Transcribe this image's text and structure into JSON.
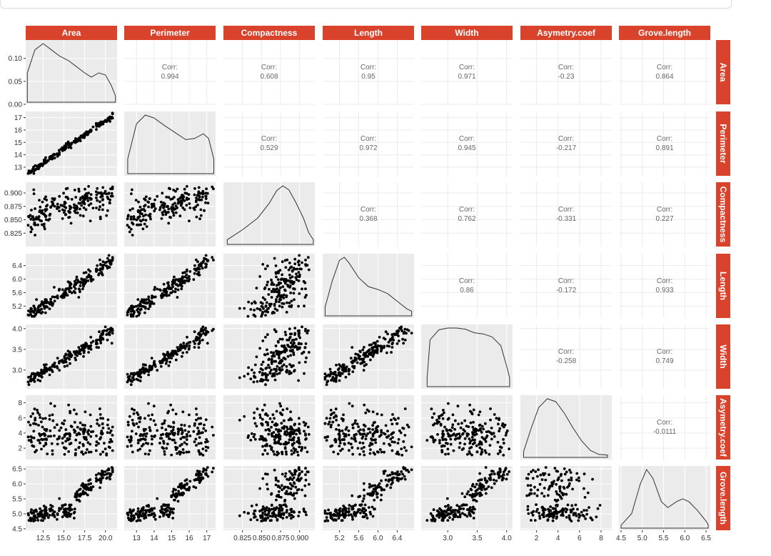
{
  "chart_data": {
    "type": "scatter-matrix",
    "variables": [
      "Area",
      "Perimeter",
      "Compactness",
      "Length",
      "Width",
      "Asymetry.coef",
      "Grove.length"
    ],
    "corr_label": "Corr:",
    "correlations": [
      {
        "row": 0,
        "col": 1,
        "value": "0.994"
      },
      {
        "row": 0,
        "col": 2,
        "value": "0.608"
      },
      {
        "row": 0,
        "col": 3,
        "value": "0.95"
      },
      {
        "row": 0,
        "col": 4,
        "value": "0.971"
      },
      {
        "row": 0,
        "col": 5,
        "value": "-0.23"
      },
      {
        "row": 0,
        "col": 6,
        "value": "0.864"
      },
      {
        "row": 1,
        "col": 2,
        "value": "0.529"
      },
      {
        "row": 1,
        "col": 3,
        "value": "0.972"
      },
      {
        "row": 1,
        "col": 4,
        "value": "0.945"
      },
      {
        "row": 1,
        "col": 5,
        "value": "-0.217"
      },
      {
        "row": 1,
        "col": 6,
        "value": "0.891"
      },
      {
        "row": 2,
        "col": 3,
        "value": "0.368"
      },
      {
        "row": 2,
        "col": 4,
        "value": "0.762"
      },
      {
        "row": 2,
        "col": 5,
        "value": "-0.331"
      },
      {
        "row": 2,
        "col": 6,
        "value": "0.227"
      },
      {
        "row": 3,
        "col": 4,
        "value": "0.86"
      },
      {
        "row": 3,
        "col": 5,
        "value": "-0.172"
      },
      {
        "row": 3,
        "col": 6,
        "value": "0.933"
      },
      {
        "row": 4,
        "col": 5,
        "value": "-0.258"
      },
      {
        "row": 4,
        "col": 6,
        "value": "0.749"
      },
      {
        "row": 5,
        "col": 6,
        "value": "-0.0111"
      }
    ],
    "ranges": [
      [
        10.4,
        21.4
      ],
      [
        12.3,
        17.5
      ],
      [
        0.8,
        0.92
      ],
      [
        4.85,
        6.75
      ],
      [
        2.55,
        4.1
      ],
      [
        0.5,
        9.0
      ],
      [
        4.45,
        6.6
      ]
    ],
    "x_ticks": [
      [
        12.5,
        15.0,
        17.5,
        20.0
      ],
      [
        13,
        14,
        15,
        16,
        17
      ],
      [
        0.825,
        0.85,
        0.875,
        0.9
      ],
      [
        5.2,
        5.6,
        6.0,
        6.4
      ],
      [
        3.0,
        3.5,
        4.0
      ],
      [
        2,
        4,
        6,
        8
      ],
      [
        4.5,
        5.0,
        5.5,
        6.0,
        6.5
      ]
    ],
    "x_tick_labels": [
      [
        "12.5",
        "15.0",
        "17.5",
        "20.0"
      ],
      [
        "13",
        "14",
        "15",
        "16",
        "17"
      ],
      [
        "0.825",
        "0.850",
        "0.875",
        "0.900"
      ],
      [
        "5.2",
        "5.6",
        "6.0",
        "6.4"
      ],
      [
        "3.0",
        "3.5",
        "4.0"
      ],
      [
        "2",
        "4",
        "6",
        "8"
      ],
      [
        "4.5",
        "5.0",
        "5.5",
        "6.0",
        "6.5"
      ]
    ],
    "y_ticks": [
      [
        0.0,
        0.05,
        0.1
      ],
      [
        13,
        14,
        15,
        16,
        17
      ],
      [
        0.825,
        0.85,
        0.875,
        0.9
      ],
      [
        5.2,
        5.6,
        6.0,
        6.4
      ],
      [
        3.0,
        3.5,
        4.0
      ],
      [
        2,
        4,
        6,
        8
      ],
      [
        4.5,
        5.0,
        5.5,
        6.0,
        6.5
      ]
    ],
    "y_tick_labels": [
      [
        "0.00",
        "0.05",
        "0.10"
      ],
      [
        "13",
        "14",
        "15",
        "16",
        "17"
      ],
      [
        "0.825",
        "0.850",
        "0.875",
        "0.900"
      ],
      [
        "5.2",
        "5.6",
        "6.0",
        "6.4"
      ],
      [
        "3.0",
        "3.5",
        "4.0"
      ],
      [
        "2",
        "4",
        "6",
        "8"
      ],
      [
        "4.5",
        "5.0",
        "5.5",
        "6.0",
        "6.5"
      ]
    ],
    "density_top_left_ylim": [
      0,
      0.14
    ],
    "densities": [
      [
        [
          10.6,
          0.07
        ],
        [
          11.5,
          0.125
        ],
        [
          12.5,
          0.14
        ],
        [
          13.5,
          0.125
        ],
        [
          14.5,
          0.11
        ],
        [
          15.5,
          0.1
        ],
        [
          16.5,
          0.085
        ],
        [
          17.5,
          0.07
        ],
        [
          18.3,
          0.06
        ],
        [
          19.2,
          0.07
        ],
        [
          20.0,
          0.065
        ],
        [
          20.7,
          0.04
        ],
        [
          21.2,
          0.015
        ]
      ],
      [
        [
          12.5,
          0.25
        ],
        [
          13.0,
          0.85
        ],
        [
          13.5,
          1.0
        ],
        [
          14.0,
          0.95
        ],
        [
          14.6,
          0.82
        ],
        [
          15.2,
          0.7
        ],
        [
          15.8,
          0.58
        ],
        [
          16.3,
          0.6
        ],
        [
          16.8,
          0.68
        ],
        [
          17.1,
          0.6
        ],
        [
          17.4,
          0.25
        ]
      ],
      [
        [
          0.805,
          0.08
        ],
        [
          0.825,
          0.25
        ],
        [
          0.845,
          0.45
        ],
        [
          0.86,
          0.7
        ],
        [
          0.87,
          0.92
        ],
        [
          0.878,
          1.0
        ],
        [
          0.886,
          0.93
        ],
        [
          0.895,
          0.72
        ],
        [
          0.905,
          0.45
        ],
        [
          0.912,
          0.2
        ],
        [
          0.918,
          0.08
        ]
      ],
      [
        [
          4.9,
          0.15
        ],
        [
          5.05,
          0.6
        ],
        [
          5.2,
          0.95
        ],
        [
          5.3,
          1.0
        ],
        [
          5.4,
          0.9
        ],
        [
          5.6,
          0.65
        ],
        [
          5.8,
          0.5
        ],
        [
          6.0,
          0.45
        ],
        [
          6.2,
          0.38
        ],
        [
          6.4,
          0.25
        ],
        [
          6.6,
          0.12
        ],
        [
          6.7,
          0.08
        ]
      ],
      [
        [
          2.65,
          0.15
        ],
        [
          2.7,
          0.8
        ],
        [
          2.85,
          0.97
        ],
        [
          3.0,
          1.0
        ],
        [
          3.15,
          1.0
        ],
        [
          3.3,
          0.98
        ],
        [
          3.45,
          0.92
        ],
        [
          3.6,
          0.9
        ],
        [
          3.75,
          0.85
        ],
        [
          3.9,
          0.7
        ],
        [
          4.0,
          0.35
        ],
        [
          4.05,
          0.15
        ]
      ],
      [
        [
          0.8,
          0.1
        ],
        [
          1.5,
          0.5
        ],
        [
          2.2,
          0.85
        ],
        [
          3.0,
          1.0
        ],
        [
          3.8,
          0.95
        ],
        [
          4.6,
          0.75
        ],
        [
          5.4,
          0.5
        ],
        [
          6.2,
          0.28
        ],
        [
          7.0,
          0.12
        ],
        [
          7.8,
          0.05
        ],
        [
          8.6,
          0.04
        ]
      ],
      [
        [
          4.5,
          0.05
        ],
        [
          4.75,
          0.25
        ],
        [
          4.95,
          0.75
        ],
        [
          5.1,
          1.0
        ],
        [
          5.25,
          0.85
        ],
        [
          5.45,
          0.45
        ],
        [
          5.6,
          0.35
        ],
        [
          5.8,
          0.45
        ],
        [
          5.95,
          0.5
        ],
        [
          6.1,
          0.45
        ],
        [
          6.3,
          0.3
        ],
        [
          6.5,
          0.12
        ],
        [
          6.55,
          0.06
        ]
      ]
    ]
  }
}
